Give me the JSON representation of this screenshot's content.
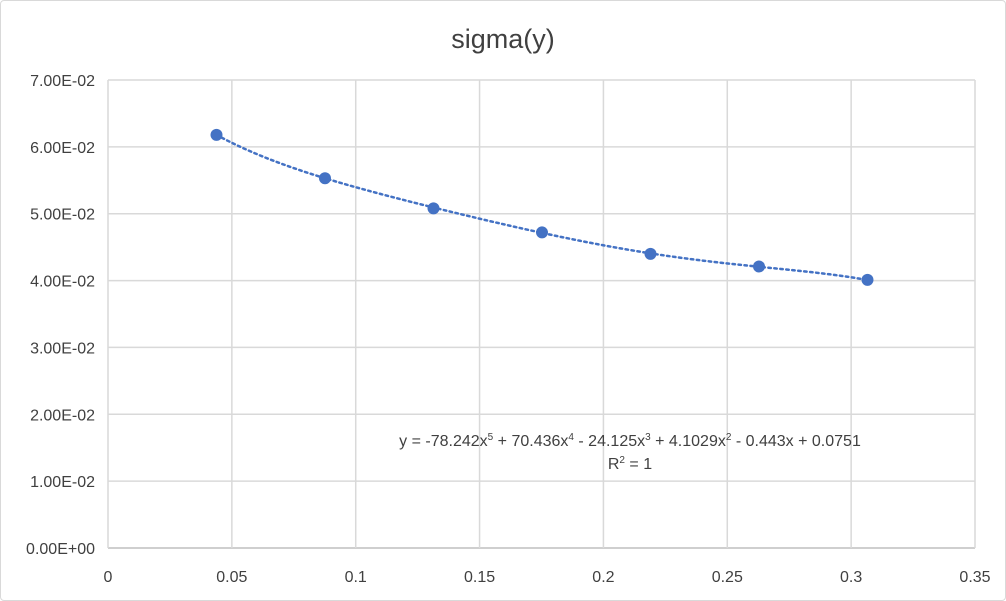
{
  "chart_data": {
    "type": "scatter",
    "title": "sigma(y)",
    "xlabel": "",
    "ylabel": "",
    "xlim": [
      0,
      0.35
    ],
    "ylim": [
      0,
      0.07
    ],
    "x_ticks": [
      0,
      0.05,
      0.1,
      0.15,
      0.2,
      0.25,
      0.3,
      0.35
    ],
    "x_tick_labels": [
      "0",
      "0.05",
      "0.1",
      "0.15",
      "0.2",
      "0.25",
      "0.3",
      "0.35"
    ],
    "y_ticks": [
      0,
      0.01,
      0.02,
      0.03,
      0.04,
      0.05,
      0.06,
      0.07
    ],
    "y_tick_labels": [
      "0.00E+00",
      "1.00E-02",
      "2.00E-02",
      "3.00E-02",
      "4.00E-02",
      "5.00E-02",
      "6.00E-02",
      "7.00E-02"
    ],
    "grid": true,
    "series": [
      {
        "x": [
          0.0438,
          0.0876,
          0.1314,
          0.1752,
          0.219,
          0.2628,
          0.3066
        ],
        "y": [
          0.0618,
          0.0553,
          0.0508,
          0.0472,
          0.044,
          0.0421,
          0.0401
        ],
        "color": "#4472c4"
      }
    ],
    "trendline": {
      "kind": "polynomial",
      "coefficients": [
        0.0751,
        -0.443,
        4.1029,
        -24.125,
        70.436,
        -78.242
      ],
      "color": "#4472c4",
      "style": "dotted",
      "equation_parts": {
        "prefix": "y = -78.242x",
        "e5": "5",
        "t4": " + 70.436x",
        "e4": "4",
        "t3": " - 24.125x",
        "e3": "3",
        "t2": " + 4.1029x",
        "e2": "2",
        "t1": " - 0.443x + 0.0751"
      },
      "r2_parts": {
        "prefix": "R",
        "e": "2",
        "suffix": " = 1"
      }
    }
  }
}
